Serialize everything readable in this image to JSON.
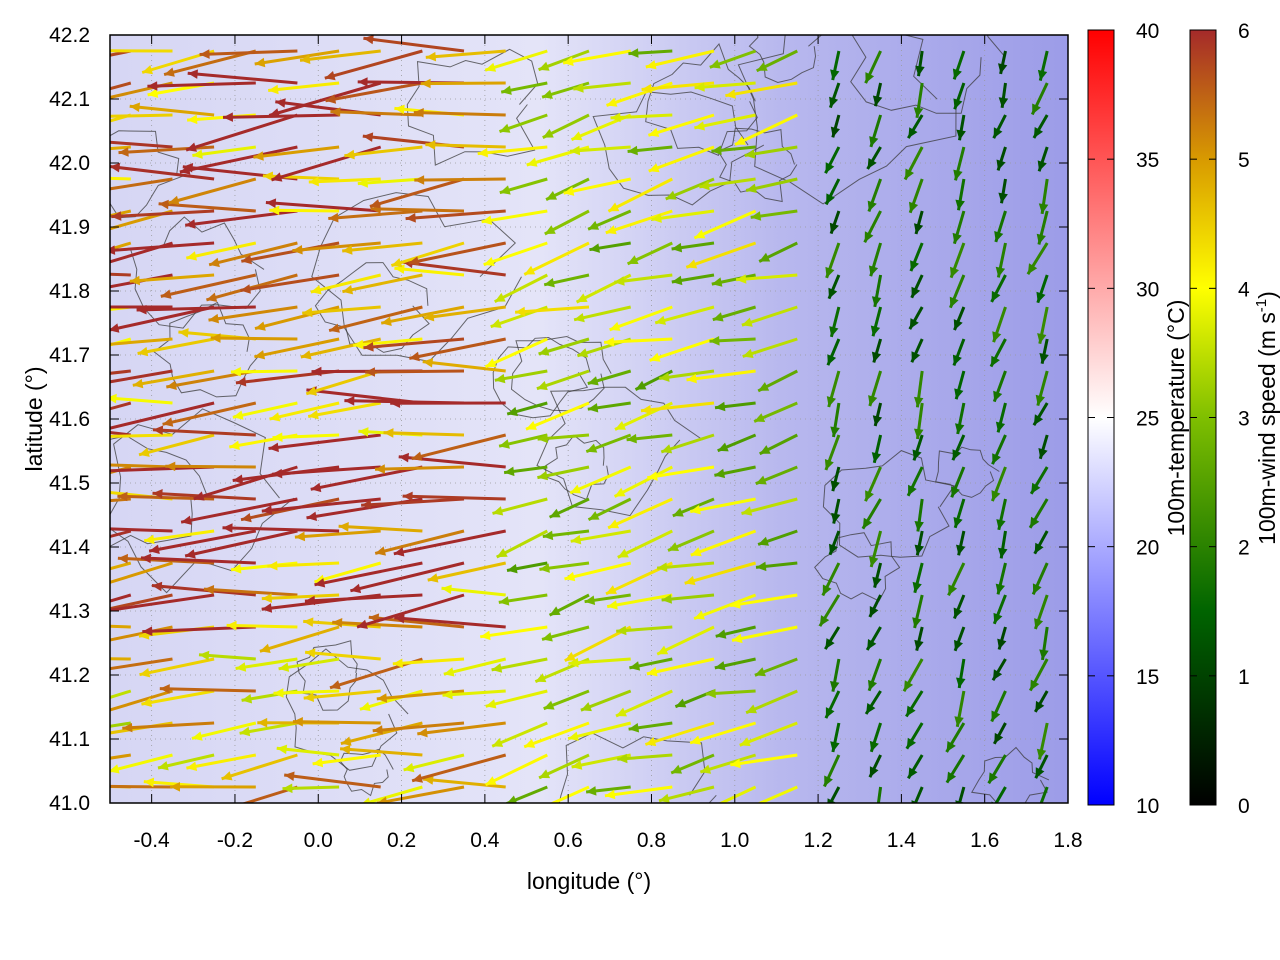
{
  "chart_data": {
    "type": "vector-field",
    "xlabel": "longitude (°)",
    "ylabel": "latitude (°)",
    "xlim": [
      -0.5,
      1.8
    ],
    "ylim": [
      41.0,
      42.2
    ],
    "xticks": [
      "-0.4",
      "-0.2",
      "0.0",
      "0.2",
      "0.4",
      "0.6",
      "0.8",
      "1.0",
      "1.2",
      "1.4",
      "1.6",
      "1.8"
    ],
    "yticks": [
      "41.0",
      "41.1",
      "41.2",
      "41.3",
      "41.4",
      "41.5",
      "41.6",
      "41.7",
      "41.8",
      "41.9",
      "42.0",
      "42.1",
      "42.2"
    ],
    "grid": true,
    "background_field": {
      "name": "100m-temperature (°C)",
      "range": [
        10,
        40
      ],
      "ticks": [
        "10",
        "15",
        "20",
        "25",
        "30",
        "35",
        "40"
      ],
      "colormap": [
        "#0000ff",
        "#ffffff",
        "#ff0000"
      ],
      "typical_value_west": 22,
      "typical_value_east": 18
    },
    "vector_field": {
      "name": "100m-wind speed (m s⁻¹)",
      "name_parts": {
        "base": "100m-wind speed (m s",
        "sup": "-1",
        "close": ")"
      },
      "range": [
        0,
        6
      ],
      "ticks": [
        "0",
        "1",
        "2",
        "3",
        "4",
        "5",
        "6"
      ],
      "colormap": [
        "#000000",
        "#006400",
        "#7fbf00",
        "#ffff00",
        "#d89a00",
        "#a52a2a"
      ],
      "regions": [
        {
          "region": "west (lon < 0.5)",
          "direction_deg": 265,
          "speed": 6.0
        },
        {
          "region": "central (0.5–1.2)",
          "direction_deg": 255,
          "speed": 3.5
        },
        {
          "region": "east (lon > 1.2)",
          "direction_deg": 200,
          "speed": 1.5
        }
      ]
    },
    "contours": "terrain elevation (grey lines, unlabeled)"
  }
}
